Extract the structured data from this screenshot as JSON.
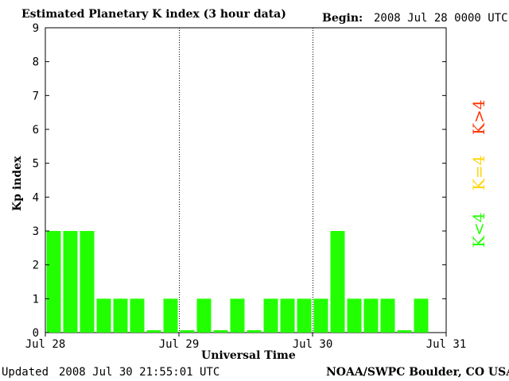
{
  "header": {
    "title": "Estimated Planetary K index (3 hour data)",
    "begin_label": "Begin:",
    "begin_value": "2008 Jul 28 0000 UTC"
  },
  "footer": {
    "updated_label": "Updated",
    "updated_value": "2008 Jul 30 21:55:01 UTC",
    "source": "NOAA/SWPC Boulder, CO USA"
  },
  "legend": {
    "k_gt4": "K>4",
    "k_eq4": "K=4",
    "k_lt4": "K<4"
  },
  "colors": {
    "k_lt4": "#22ff00",
    "k_eq4": "#ffd400",
    "k_gt4": "#ff3300",
    "axis": "#000000"
  },
  "chart_data": {
    "type": "bar",
    "title": "Estimated Planetary K index (3 hour data)",
    "xlabel": "Universal Time",
    "ylabel": "Kp index",
    "ylim": [
      0,
      9
    ],
    "y_ticks": [
      "0",
      "1",
      "2",
      "3",
      "4",
      "5",
      "6",
      "7",
      "8",
      "9"
    ],
    "x_ticks": [
      "Jul 28",
      "Jul 29",
      "Jul 30",
      "Jul 31"
    ],
    "day_separators": [
      "Jul 29",
      "Jul 30"
    ],
    "bins_per_day": 8,
    "total_bins": 24,
    "values": [
      3,
      3,
      3,
      1,
      1,
      1,
      0.07,
      1,
      0.07,
      1,
      0.07,
      1,
      0.07,
      1,
      1,
      1,
      1,
      3,
      1,
      1,
      1,
      0.07,
      1
    ]
  }
}
